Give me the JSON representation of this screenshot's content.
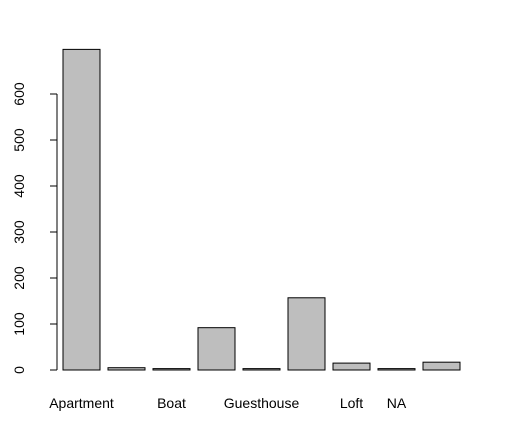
{
  "chart_data": {
    "type": "bar",
    "title": "",
    "xlabel": "",
    "ylabel": "",
    "categories": [
      "Apartment",
      "",
      "Boat",
      "",
      "Guesthouse",
      "",
      "Loft",
      "NA",
      ""
    ],
    "values": [
      697,
      5,
      3,
      92,
      3,
      157,
      15,
      3,
      17
    ],
    "ylim": [
      0,
      697
    ],
    "yticks": [
      0,
      100,
      200,
      300,
      400,
      500,
      600
    ],
    "grid": false,
    "legend": "none",
    "bar_fill": "#bebebe",
    "bar_stroke": "#000000"
  }
}
